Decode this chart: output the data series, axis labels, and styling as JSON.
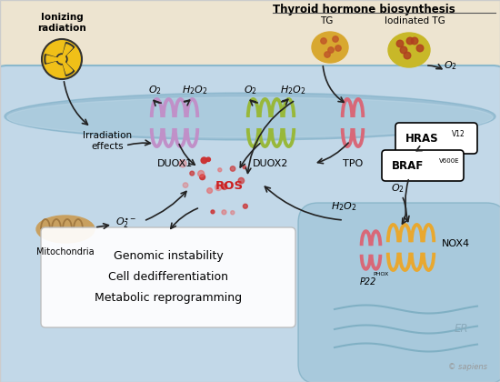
{
  "bg_top": "#ede4d0",
  "bg_cell": "#c2d8e8",
  "bg_er": "#a8c8dc",
  "membrane_color": "#8ab8d0",
  "title": "Thyroid hormone biosynthesis",
  "duox1_color": "#c090c8",
  "duox2_color": "#98b83a",
  "tpo_color": "#d86878",
  "nox4_color": "#e8a830",
  "p22phox_color": "#d86878",
  "mito_color": "#c8a060",
  "ros_color": "#cc3030",
  "ros_light_color": "#e86060",
  "tg_color": "#d8a830",
  "tg_dot_color": "#c05828",
  "itg_color": "#c8b828",
  "itg_dot_color": "#b04020",
  "outcome_text": "Genomic instability\nCell dedifferentiation\nMetabolic reprogramming",
  "hras_text": "HRAS",
  "hras_sup": "V12",
  "braf_text": "BRAF",
  "braf_sup": "V600E",
  "sapiens_text": "© sapiens"
}
